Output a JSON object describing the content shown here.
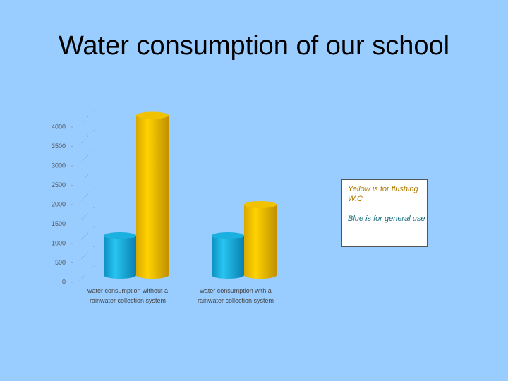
{
  "chart_data": {
    "type": "bar",
    "title": "Water consumption of our school",
    "categories": [
      "water consumption without a rainwater collection system",
      "water consumption with a rainwater collection system"
    ],
    "series": [
      {
        "color": "#1ab0e0",
        "values": [
          1200,
          1200
        ]
      },
      {
        "color": "#f2c200",
        "values": [
          4300,
          2000
        ]
      }
    ],
    "ylim": [
      0,
      4500
    ],
    "yticks": [
      0,
      500,
      1000,
      1500,
      2000,
      2500,
      3000,
      3500,
      4000
    ],
    "annotations": [
      {
        "text": "Yellow is for flushing W.C",
        "color": "#b07800"
      },
      {
        "text": "Blue is for general use",
        "color": "#1a7080"
      }
    ]
  }
}
